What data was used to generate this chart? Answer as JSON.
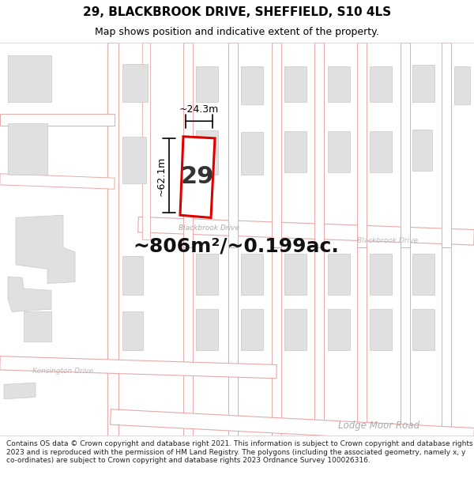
{
  "title_line1": "29, BLACKBROOK DRIVE, SHEFFIELD, S10 4LS",
  "title_line2": "Map shows position and indicative extent of the property.",
  "footer_text": "Contains OS data © Crown copyright and database right 2021. This information is subject to Crown copyright and database rights 2023 and is reproduced with the permission of HM Land Registry. The polygons (including the associated geometry, namely x, y co-ordinates) are subject to Crown copyright and database rights 2023 Ordnance Survey 100026316.",
  "area_label": "~806m²/~0.199ac.",
  "width_label": "~24.3m",
  "height_label": "~62.1m",
  "number_label": "29",
  "road_label_blackbrook_upper": "Blackbrook Drive",
  "road_label_blackbrook_lower": "Blackbrook Drive",
  "road_label_kensington": "Kensington Drive",
  "road_label_lodge": "Lodge Moor Road",
  "map_bg": "#f2f2f2",
  "road_fill": "#ffffff",
  "road_outline": "#e8a8a8",
  "building_fill": "#e0e0e0",
  "building_edge": "#c8c8c8",
  "plot_fill": "#ffffff",
  "plot_outline": "#dd0000",
  "dim_color": "#000000",
  "title_color": "#000000",
  "footer_color": "#222222",
  "title_fontsize": 11,
  "subtitle_fontsize": 9,
  "area_fontsize": 18,
  "number_fontsize": 22,
  "road_fontsize": 6.5,
  "dim_fontsize": 9,
  "footer_fontsize": 6.5
}
